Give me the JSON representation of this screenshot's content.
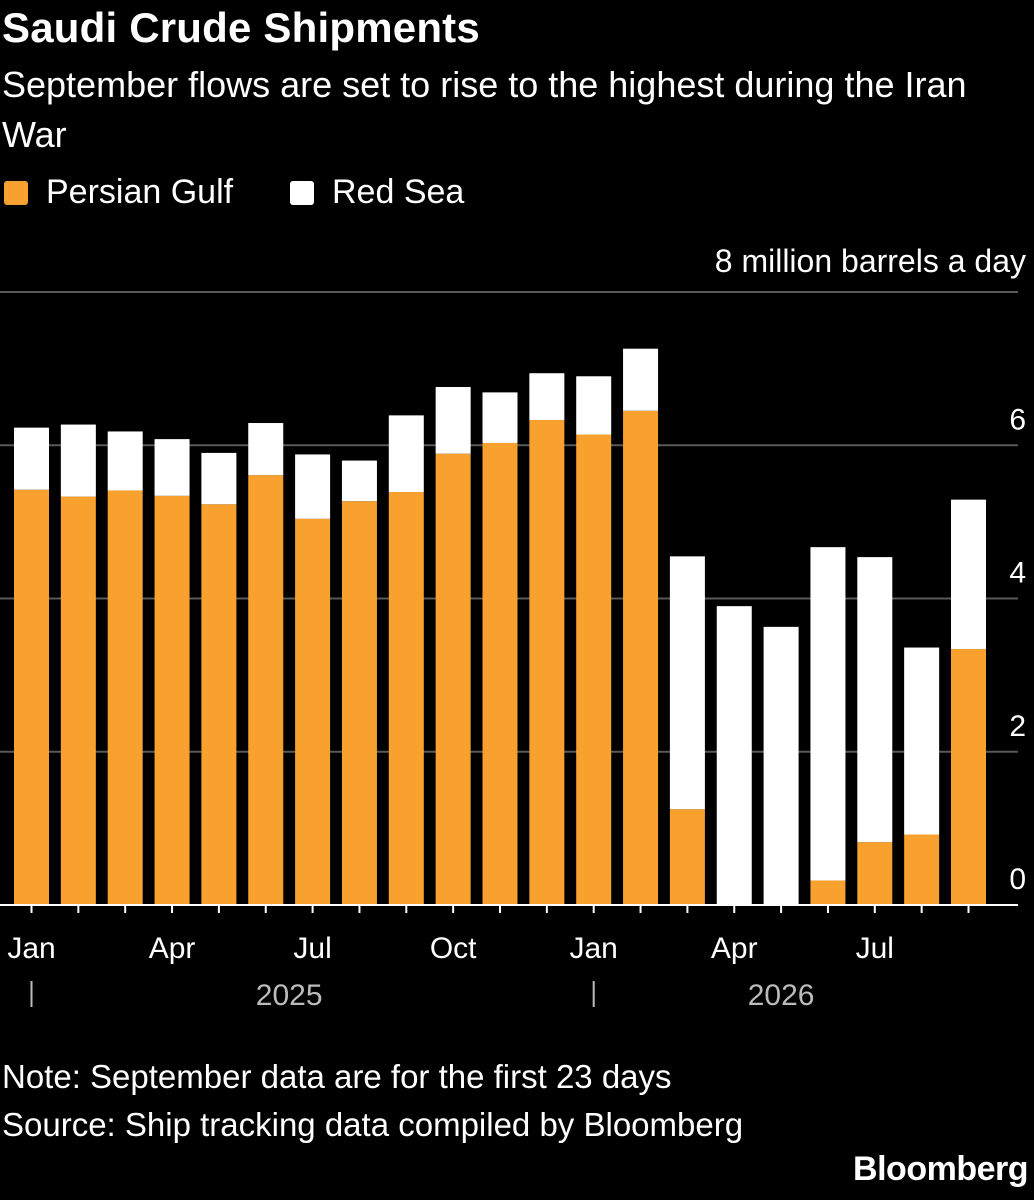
{
  "header": {
    "title": "Saudi Crude Shipments",
    "subtitle": "September flows are set to rise to the highest during the Iran War"
  },
  "legend": [
    {
      "name": "Persian Gulf",
      "color": "#f9a12e"
    },
    {
      "name": "Red Sea",
      "color": "#ffffff"
    }
  ],
  "footer": {
    "note": "Note: September data are for the first 23 days",
    "source": "Source: Ship tracking data compiled by Bloomberg",
    "brand": "Bloomberg"
  },
  "chart_data": {
    "type": "bar",
    "stacked": true,
    "unit_label": "8 million barrels a day",
    "y_ticks": [
      0,
      2,
      4,
      6,
      8
    ],
    "ylim": [
      0,
      8
    ],
    "grid": true,
    "y_axis_side": "right",
    "legend_placement": "top-left",
    "categories": [
      "Jan 2025",
      "Feb 2025",
      "Mar 2025",
      "Apr 2025",
      "May 2025",
      "Jun 2025",
      "Jul 2025",
      "Aug 2025",
      "Sep 2025",
      "Oct 2025",
      "Nov 2025",
      "Dec 2025",
      "Jan 2026",
      "Feb 2026",
      "Mar 2026",
      "Apr 2026",
      "May 2026",
      "Jun 2026",
      "Jul 2026",
      "Aug 2026",
      "Sep 2026"
    ],
    "x_tick_labels": [
      {
        "category": "Jan 2025",
        "label": "Jan"
      },
      {
        "category": "Apr 2025",
        "label": "Apr"
      },
      {
        "category": "Jul 2025",
        "label": "Jul"
      },
      {
        "category": "Oct 2025",
        "label": "Oct"
      },
      {
        "category": "Jan 2026",
        "label": "Jan"
      },
      {
        "category": "Apr 2026",
        "label": "Apr"
      },
      {
        "category": "Jul 2026",
        "label": "Jul"
      }
    ],
    "year_labels": [
      {
        "label": "2025",
        "start": "Jan 2025",
        "end": "Dec 2025"
      },
      {
        "label": "2026",
        "start": "Jan 2026",
        "end": "Sep 2026"
      }
    ],
    "series": [
      {
        "name": "Persian Gulf",
        "color": "#f9a12e",
        "values": [
          5.42,
          5.33,
          5.41,
          5.34,
          5.23,
          5.61,
          5.04,
          5.27,
          5.39,
          5.89,
          6.03,
          6.33,
          6.14,
          6.45,
          1.25,
          0.0,
          0.0,
          0.32,
          0.82,
          0.92,
          3.34
        ]
      },
      {
        "name": "Red Sea",
        "color": "#ffffff",
        "values": [
          0.81,
          0.94,
          0.77,
          0.74,
          0.67,
          0.68,
          0.84,
          0.53,
          1.0,
          0.87,
          0.66,
          0.61,
          0.76,
          0.81,
          3.3,
          3.9,
          3.63,
          4.35,
          3.72,
          2.44,
          1.95
        ]
      }
    ]
  }
}
